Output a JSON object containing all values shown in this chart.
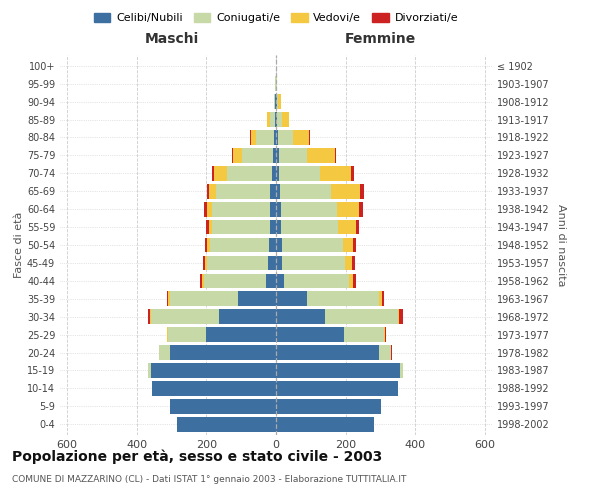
{
  "age_groups": [
    "0-4",
    "5-9",
    "10-14",
    "15-19",
    "20-24",
    "25-29",
    "30-34",
    "35-39",
    "40-44",
    "45-49",
    "50-54",
    "55-59",
    "60-64",
    "65-69",
    "70-74",
    "75-79",
    "80-84",
    "85-89",
    "90-94",
    "95-99",
    "100+"
  ],
  "birth_years": [
    "1998-2002",
    "1993-1997",
    "1988-1992",
    "1983-1987",
    "1978-1982",
    "1973-1977",
    "1968-1972",
    "1963-1967",
    "1958-1962",
    "1953-1957",
    "1948-1952",
    "1943-1947",
    "1938-1942",
    "1933-1937",
    "1928-1932",
    "1923-1927",
    "1918-1922",
    "1913-1917",
    "1908-1912",
    "1903-1907",
    "≤ 1902"
  ],
  "male_celibe": [
    285,
    305,
    355,
    360,
    305,
    200,
    165,
    110,
    28,
    22,
    20,
    18,
    18,
    16,
    12,
    8,
    6,
    4,
    2,
    1,
    1
  ],
  "male_coniugato": [
    0,
    0,
    1,
    8,
    30,
    110,
    195,
    195,
    180,
    175,
    170,
    165,
    165,
    155,
    130,
    90,
    50,
    14,
    3,
    1,
    0
  ],
  "male_vedovo": [
    0,
    0,
    0,
    0,
    1,
    2,
    2,
    4,
    5,
    6,
    8,
    10,
    15,
    20,
    35,
    25,
    16,
    8,
    2,
    0,
    0
  ],
  "male_divorziato": [
    0,
    0,
    0,
    0,
    1,
    2,
    4,
    5,
    6,
    6,
    6,
    8,
    8,
    8,
    8,
    4,
    2,
    0,
    0,
    0,
    0
  ],
  "female_celibe": [
    280,
    300,
    350,
    355,
    295,
    195,
    140,
    90,
    22,
    18,
    16,
    14,
    14,
    12,
    10,
    8,
    5,
    4,
    3,
    1,
    1
  ],
  "female_coniugata": [
    0,
    0,
    1,
    10,
    35,
    115,
    210,
    205,
    188,
    180,
    175,
    165,
    160,
    145,
    115,
    80,
    45,
    12,
    3,
    1,
    0
  ],
  "female_vedova": [
    0,
    0,
    0,
    0,
    1,
    3,
    4,
    8,
    12,
    20,
    30,
    50,
    65,
    85,
    90,
    80,
    45,
    20,
    8,
    2,
    0
  ],
  "female_divorziata": [
    0,
    0,
    0,
    0,
    1,
    3,
    10,
    6,
    8,
    8,
    8,
    10,
    10,
    10,
    10,
    5,
    2,
    1,
    0,
    0,
    0
  ],
  "color_celibe": "#3d6fa0",
  "color_coniugato": "#c8d9a8",
  "color_vedovo": "#f5c842",
  "color_divorziato": "#cc2222",
  "title_main": "Popolazione per età, sesso e stato civile - 2003",
  "title_sub": "COMUNE DI MAZZARINO (CL) - Dati ISTAT 1° gennaio 2003 - Elaborazione TUTTITALIA.IT",
  "xlabel_left": "Maschi",
  "xlabel_right": "Femmine",
  "ylabel_left": "Fasce di età",
  "ylabel_right": "Anni di nascita",
  "xlim": 620,
  "xticks": [
    -600,
    -400,
    -200,
    0,
    200,
    400,
    600
  ],
  "xtick_labels": [
    "600",
    "400",
    "200",
    "0",
    "200",
    "400",
    "600"
  ],
  "legend_labels": [
    "Celibi/Nubili",
    "Coniugati/e",
    "Vedovi/e",
    "Divorziati/e"
  ],
  "background_color": "#ffffff",
  "legend_colors": [
    "#3d6fa0",
    "#c8d9a8",
    "#f5c842",
    "#cc2222"
  ]
}
